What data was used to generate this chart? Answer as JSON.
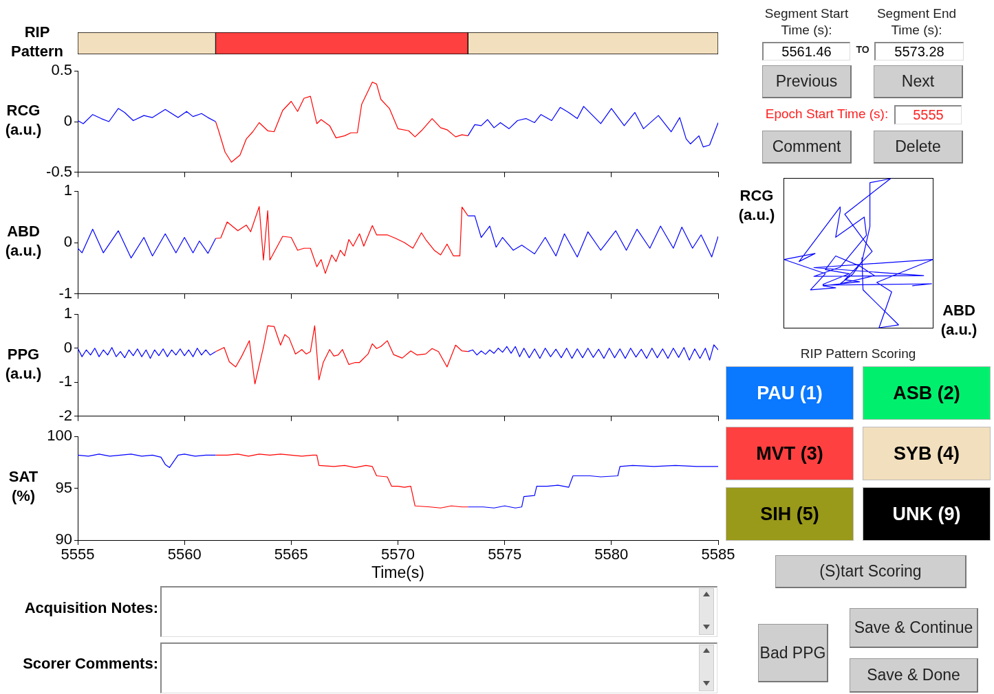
{
  "chart_data": [
    {
      "type": "bar",
      "orientation": "horizontal",
      "ylabel": "RIP Pattern",
      "categories": [
        null
      ],
      "xlim": [
        5555,
        5585
      ],
      "tick_labels": false,
      "series": [
        {
          "color": "#f2dfbd",
          "values": [
            6.46
          ],
          "base": [
            5555
          ]
        },
        {
          "color": "#ff4040",
          "values": [
            11.82
          ],
          "base": [
            5561.46
          ]
        },
        {
          "color": "#f2dfbd",
          "values": [
            11.72
          ],
          "base": [
            5573.28
          ]
        }
      ]
    },
    {
      "type": "line",
      "ylabel": "RCG (a.u.)",
      "xlim": [
        5555,
        5585
      ],
      "xticks": [
        5555,
        5560,
        5565,
        5570,
        5575,
        5580,
        5585
      ],
      "ylim": [
        -0.5,
        0.5
      ],
      "yticks": [
        -0.5,
        0,
        0.5
      ],
      "tick_labels": "y",
      "series": [
        {
          "color": "#0000ff",
          "x": [
            5555,
            5555.26,
            5555.7,
            5556.1,
            5556.46,
            5556.9,
            5557.2,
            5557.6,
            5558.1,
            5558.5,
            5559.1,
            5559.7,
            5560.1,
            5560.4,
            5560.8,
            5561.1,
            5561.46
          ],
          "values": [
            0.01,
            -0.02,
            0.07,
            0.03,
            0.0,
            0.13,
            0.09,
            0.01,
            0.06,
            0.04,
            0.12,
            0.04,
            0.1,
            0.05,
            0.08,
            0.04,
            0.0
          ]
        },
        {
          "color": "#ff0000",
          "x": [
            5561.46,
            5561.6,
            5561.9,
            5562.2,
            5562.6,
            5562.9,
            5563.2,
            5563.5,
            5563.9,
            5564.2,
            5564.6,
            5565.0,
            5565.3,
            5565.6,
            5565.9,
            5566.2,
            5566.4,
            5566.8,
            5567.1,
            5567.5,
            5567.8,
            5568.1,
            5568.3,
            5568.8,
            5569.0,
            5569.2,
            5569.6,
            5570.0,
            5570.5,
            5570.8,
            5571.1,
            5571.6,
            5572.0,
            5572.3,
            5572.7,
            5573.0,
            5573.28
          ],
          "values": [
            0.0,
            -0.09,
            -0.3,
            -0.4,
            -0.33,
            -0.17,
            -0.1,
            -0.01,
            -0.09,
            -0.1,
            0.11,
            0.2,
            0.1,
            0.23,
            0.25,
            -0.02,
            0.02,
            -0.04,
            -0.16,
            -0.14,
            -0.11,
            -0.11,
            0.17,
            0.39,
            0.37,
            0.22,
            0.13,
            -0.07,
            -0.09,
            -0.15,
            -0.09,
            0.03,
            -0.06,
            -0.08,
            -0.15,
            -0.13,
            -0.14
          ]
        },
        {
          "color": "#0000ff",
          "x": [
            5573.28,
            5573.6,
            5573.9,
            5574.2,
            5574.5,
            5574.8,
            5575.2,
            5575.6,
            5576.0,
            5576.4,
            5576.7,
            5577.2,
            5577.6,
            5578.0,
            5578.4,
            5578.7,
            5579.5,
            5580.0,
            5580.6,
            5581.1,
            5581.5,
            5582.2,
            5582.8,
            5583.2,
            5583.5,
            5583.7,
            5584.1,
            5584.3,
            5584.6,
            5585.0
          ],
          "values": [
            -0.14,
            -0.03,
            -0.04,
            0.02,
            -0.06,
            -0.01,
            -0.07,
            0.01,
            0.03,
            -0.01,
            0.07,
            0.01,
            0.14,
            0.09,
            0.03,
            0.15,
            -0.02,
            0.13,
            -0.04,
            0.09,
            -0.07,
            0.06,
            -0.1,
            0.04,
            -0.17,
            -0.22,
            -0.14,
            -0.25,
            -0.23,
            -0.01
          ]
        }
      ]
    },
    {
      "type": "line",
      "ylabel": "ABD (a.u.)",
      "xlim": [
        5555,
        5585
      ],
      "xticks": [
        5555,
        5560,
        5565,
        5570,
        5575,
        5580,
        5585
      ],
      "ylim": [
        -1,
        1
      ],
      "yticks": [
        -1,
        0,
        1
      ],
      "tick_labels": "y",
      "series": [
        {
          "color": "#0000ff",
          "x": [
            5555,
            5555.2,
            5555.7,
            5556.2,
            5556.9,
            5557.5,
            5558.1,
            5558.5,
            5559.1,
            5559.6,
            5560.0,
            5560.4,
            5560.7,
            5561.1,
            5561.46
          ],
          "values": [
            -0.11,
            -0.2,
            0.26,
            -0.2,
            0.23,
            -0.3,
            0.1,
            -0.26,
            0.17,
            -0.2,
            0.1,
            -0.2,
            0.03,
            -0.21,
            0.08
          ]
        },
        {
          "color": "#ff0000",
          "x": [
            5561.46,
            5561.7,
            5562.0,
            5562.5,
            5562.9,
            5563.1,
            5563.5,
            5563.7,
            5563.9,
            5564.0,
            5564.3,
            5564.6,
            5565.0,
            5565.3,
            5565.6,
            5565.9,
            5566.2,
            5566.4,
            5566.6,
            5566.9,
            5567.1,
            5567.3,
            5567.5,
            5567.7,
            5567.9,
            5568.2,
            5568.4,
            5568.8,
            5569.0,
            5569.5,
            5569.9,
            5570.3,
            5570.7,
            5571.1,
            5571.3,
            5571.7,
            5572.0,
            5572.3,
            5572.6,
            5572.9,
            5573.0,
            5573.28
          ],
          "values": [
            0.08,
            0.09,
            0.4,
            0.23,
            0.34,
            0.21,
            0.7,
            -0.34,
            0.62,
            -0.34,
            -0.11,
            0.12,
            0.1,
            -0.15,
            -0.11,
            -0.11,
            -0.47,
            -0.33,
            -0.6,
            -0.24,
            -0.37,
            -0.15,
            -0.26,
            0.06,
            -0.07,
            0.17,
            -0.07,
            0.33,
            0.15,
            0.15,
            0.08,
            0.0,
            -0.11,
            0.19,
            0.06,
            -0.15,
            -0.24,
            -0.03,
            -0.26,
            -0.26,
            0.69,
            0.52
          ]
        },
        {
          "color": "#0000ff",
          "x": [
            5573.28,
            5573.6,
            5573.9,
            5574.3,
            5574.6,
            5574.9,
            5575.4,
            5575.8,
            5576.4,
            5576.9,
            5577.4,
            5577.8,
            5578.4,
            5578.9,
            5579.5,
            5580.2,
            5580.7,
            5581.2,
            5581.8,
            5582.3,
            5582.9,
            5583.3,
            5583.8,
            5584.2,
            5584.7,
            5585.0
          ],
          "values": [
            0.52,
            0.52,
            0.1,
            0.32,
            -0.09,
            0.1,
            -0.15,
            -0.05,
            -0.22,
            0.1,
            -0.26,
            0.17,
            -0.28,
            0.21,
            -0.15,
            0.23,
            -0.15,
            0.26,
            -0.11,
            0.32,
            -0.11,
            0.3,
            -0.11,
            0.15,
            -0.28,
            0.12
          ]
        }
      ]
    },
    {
      "type": "line",
      "ylabel": "PPG (a.u.)",
      "xlim": [
        5555,
        5585
      ],
      "xticks": [
        5555,
        5560,
        5565,
        5570,
        5575,
        5580,
        5585
      ],
      "ylim": [
        -2,
        1
      ],
      "yticks": [
        -2,
        -1,
        0,
        1
      ],
      "tick_labels": "y",
      "series": [
        {
          "color": "#0000ff",
          "x": [
            5555,
            5555.2,
            5555.4,
            5555.6,
            5555.8,
            5556,
            5556.2,
            5556.4,
            5556.6,
            5556.8,
            5557,
            5557.2,
            5557.4,
            5557.6,
            5557.8,
            5558,
            5558.2,
            5558.4,
            5558.6,
            5558.8,
            5559,
            5559.2,
            5559.4,
            5559.6,
            5559.8,
            5560,
            5560.2,
            5560.4,
            5560.6,
            5560.8,
            5561,
            5561.2,
            5561.46
          ],
          "values": [
            0,
            -0.25,
            -0.05,
            -0.2,
            0.0,
            -0.25,
            -0.05,
            -0.2,
            0.02,
            -0.25,
            -0.1,
            -0.28,
            -0.05,
            -0.22,
            -0.02,
            -0.25,
            -0.05,
            -0.3,
            -0.05,
            -0.22,
            -0.02,
            -0.25,
            -0.05,
            -0.2,
            -0.02,
            -0.22,
            -0.05,
            -0.25,
            0.0,
            -0.2,
            -0.05,
            -0.2,
            -0.1
          ]
        },
        {
          "color": "#ff0000",
          "x": [
            5561.46,
            5561.86,
            5562.1,
            5562.4,
            5562.67,
            5563.04,
            5563.3,
            5563.7,
            5563.9,
            5564.2,
            5564.5,
            5564.7,
            5564.9,
            5565.2,
            5565.5,
            5565.7,
            5565.9,
            5566.1,
            5566.3,
            5566.5,
            5566.8,
            5567.0,
            5567.2,
            5567.4,
            5567.7,
            5568.0,
            5568.2,
            5568.6,
            5568.8,
            5569.0,
            5569.2,
            5569.5,
            5569.8,
            5570.2,
            5570.6,
            5570.9,
            5571.3,
            5571.6,
            5571.9,
            5572.3,
            5572.7,
            5573.0,
            5573.28
          ],
          "values": [
            -0.1,
            0.02,
            -0.4,
            -0.55,
            -0.25,
            0.22,
            -1.05,
            0.03,
            0.66,
            0.64,
            0.09,
            0.4,
            0.3,
            -0.17,
            -0.04,
            -0.17,
            -0.1,
            0.66,
            -0.93,
            -0.42,
            -0.04,
            -0.23,
            -0.2,
            -0.04,
            -0.48,
            -0.42,
            -0.42,
            -0.17,
            0.13,
            -0.01,
            0.05,
            0.22,
            -0.19,
            -0.29,
            -0.08,
            -0.2,
            -0.17,
            -0.01,
            -0.1,
            -0.55,
            0.09,
            -0.08,
            -0.1
          ]
        },
        {
          "color": "#0000ff",
          "x": [
            5573.28,
            5573.5,
            5573.7,
            5573.9,
            5574.1,
            5574.3,
            5574.5,
            5574.7,
            5574.9,
            5575.1,
            5575.3,
            5575.5,
            5575.7,
            5575.9,
            5576.15,
            5576.4,
            5576.65,
            5576.9,
            5577.15,
            5577.4,
            5577.65,
            5577.9,
            5578.15,
            5578.4,
            5578.65,
            5578.9,
            5579.15,
            5579.4,
            5579.65,
            5579.9,
            5580.15,
            5580.4,
            5580.65,
            5580.9,
            5581.15,
            5581.4,
            5581.65,
            5581.9,
            5582.15,
            5582.4,
            5582.65,
            5582.9,
            5583.15,
            5583.4,
            5583.65,
            5583.9,
            5584.15,
            5584.4,
            5584.6,
            5584.8,
            5585
          ],
          "values": [
            -0.1,
            -0.05,
            -0.2,
            -0.08,
            -0.18,
            -0.05,
            -0.15,
            0.0,
            -0.12,
            0.05,
            -0.15,
            0.05,
            -0.25,
            0.0,
            -0.28,
            -0.02,
            -0.3,
            0.0,
            -0.25,
            -0.03,
            -0.28,
            0.0,
            -0.3,
            -0.02,
            -0.28,
            0.0,
            -0.27,
            -0.03,
            -0.3,
            0.0,
            -0.28,
            -0.02,
            -0.3,
            0.0,
            -0.26,
            -0.03,
            -0.3,
            0.0,
            -0.28,
            -0.02,
            -0.3,
            0.0,
            -0.27,
            0.02,
            -0.35,
            -0.02,
            -0.3,
            0.0,
            -0.35,
            0.1,
            -0.05
          ]
        }
      ]
    },
    {
      "type": "line",
      "ylabel": "SAT (%)",
      "xlabel": "Time(s)",
      "xlim": [
        5555,
        5585
      ],
      "xticks": [
        5555,
        5560,
        5565,
        5570,
        5575,
        5580,
        5585
      ],
      "ylim": [
        90,
        100
      ],
      "yticks": [
        90,
        95,
        100
      ],
      "series": [
        {
          "color": "#0000ff",
          "x": [
            5555,
            5555.5,
            5556,
            5556.5,
            5557,
            5557.5,
            5558,
            5558.5,
            5558.9,
            5559.1,
            5559.3,
            5559.5,
            5559.7,
            5560,
            5560.5,
            5561,
            5561.46
          ],
          "values": [
            98.2,
            98.1,
            98.3,
            98.1,
            98.2,
            98.3,
            98.1,
            98.2,
            98.0,
            97.3,
            97.0,
            97.6,
            98.2,
            98.3,
            98.1,
            98.2,
            98.2
          ]
        },
        {
          "color": "#ff0000",
          "x": [
            5561.46,
            5562,
            5562.5,
            5563,
            5563.5,
            5564,
            5564.5,
            5565,
            5565.5,
            5566,
            5566.2,
            5566.3,
            5567,
            5567.5,
            5568,
            5568.5,
            5568.8,
            5569,
            5569.5,
            5569.7,
            5570,
            5570.3,
            5570.6,
            5570.8,
            5571.5,
            5572,
            5572.5,
            5573,
            5573.28
          ],
          "values": [
            98.2,
            98.2,
            98.3,
            98.1,
            98.3,
            98.2,
            98.3,
            98.2,
            98.1,
            98.2,
            98.2,
            97.2,
            97.1,
            97.2,
            97.0,
            97.2,
            97.1,
            96.2,
            96.1,
            95.2,
            95.2,
            95.1,
            95.2,
            93.3,
            93.2,
            93.1,
            93.3,
            93.2,
            93.2
          ]
        },
        {
          "color": "#0000ff",
          "x": [
            5573.28,
            5574,
            5574.5,
            5575,
            5575.5,
            5575.8,
            5575.9,
            5576.4,
            5576.5,
            5577,
            5577.5,
            5578,
            5578.2,
            5579,
            5579.5,
            5580.3,
            5580.4,
            5581,
            5582,
            5583,
            5584,
            5585
          ],
          "values": [
            93.2,
            93.2,
            93.1,
            93.3,
            93.1,
            93.2,
            94.2,
            94.3,
            95.2,
            95.2,
            95.3,
            95.1,
            96.2,
            96.2,
            96.1,
            96.2,
            97.1,
            97.2,
            97.1,
            97.2,
            97.1,
            97.1
          ]
        }
      ]
    },
    {
      "type": "other",
      "xlabel": "ABD (a.u.)",
      "ylabel": "RCG (a.u.)"
    },
    {
      "type": "other",
      "annotations": [
        "Segment Start Time (s):",
        "Segment End Time (s):",
        "5561.46",
        "TO",
        "5573.28",
        "Previous",
        "Next",
        "Epoch Start Time (s):",
        "5555",
        "Comment",
        "Delete",
        "RIP Pattern Scoring",
        "PAU (1)",
        "ASB (2)",
        "MVT (3)",
        "SYB (4)",
        "SIH (5)",
        "UNK (9)",
        "(S)tart Scoring",
        "Acquisition Notes:",
        "Scorer Comments:",
        "Bad PPG",
        "Save & Continue",
        "Save & Done"
      ]
    }
  ]
}
